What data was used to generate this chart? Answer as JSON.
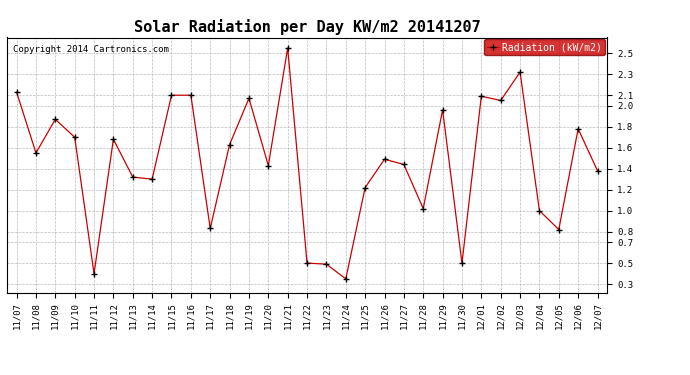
{
  "title": "Solar Radiation per Day KW/m2 20141207",
  "copyright": "Copyright 2014 Cartronics.com",
  "legend_label": "Radiation (kW/m2)",
  "x_labels": [
    "11/07",
    "11/08",
    "11/09",
    "11/10",
    "11/11",
    "11/12",
    "11/13",
    "11/14",
    "11/15",
    "11/16",
    "11/17",
    "11/18",
    "11/19",
    "11/20",
    "11/21",
    "11/22",
    "11/23",
    "11/24",
    "11/25",
    "11/26",
    "11/27",
    "11/28",
    "11/29",
    "11/30",
    "12/01",
    "12/02",
    "12/03",
    "12/04",
    "12/05",
    "12/06",
    "12/07"
  ],
  "y_values": [
    2.13,
    1.55,
    1.87,
    1.7,
    0.4,
    1.68,
    1.32,
    1.3,
    2.1,
    2.1,
    0.83,
    1.63,
    2.07,
    1.43,
    2.55,
    0.5,
    0.49,
    0.35,
    1.22,
    1.49,
    1.44,
    1.02,
    1.96,
    0.5,
    2.09,
    2.05,
    2.32,
    1.0,
    0.82,
    1.78,
    1.38
  ],
  "line_color": "#cc0000",
  "marker_color": "#000000",
  "bg_color": "#ffffff",
  "plot_bg_color": "#ffffff",
  "grid_color": "#aaaaaa",
  "ylim": [
    0.22,
    2.65
  ],
  "yticks": [
    0.3,
    0.5,
    0.7,
    0.8,
    1.0,
    1.2,
    1.4,
    1.6,
    1.8,
    2.0,
    2.1,
    2.3,
    2.5
  ],
  "title_fontsize": 11,
  "copyright_fontsize": 6.5,
  "tick_fontsize": 6.5,
  "legend_bg": "#cc0000",
  "legend_text_color": "#ffffff",
  "legend_fontsize": 7
}
